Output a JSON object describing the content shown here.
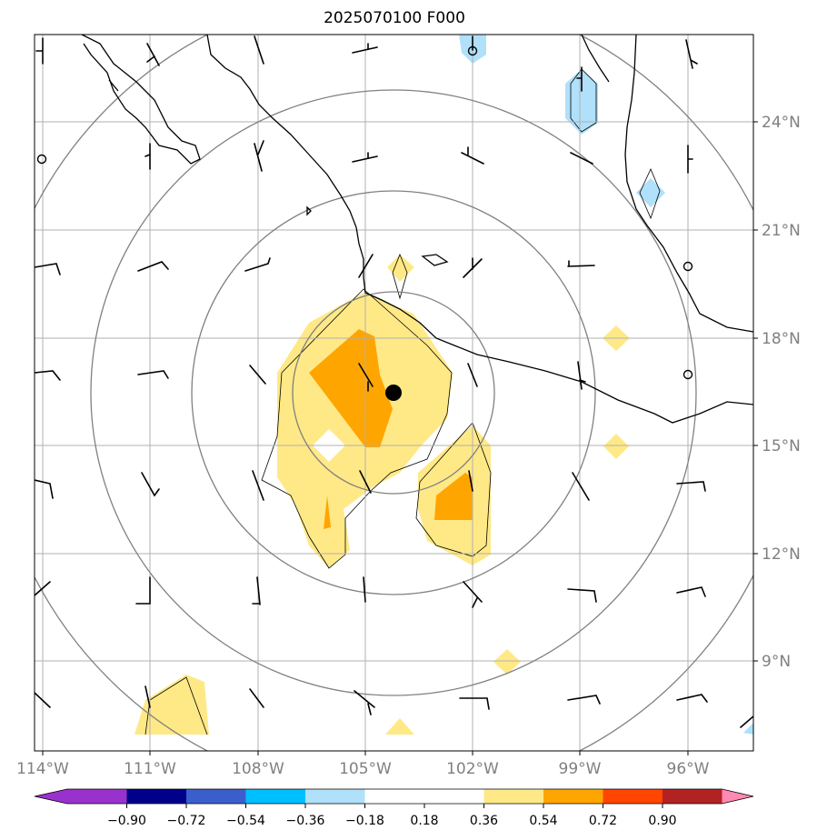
{
  "title": "2025070100 F000",
  "lat_labels": [
    "24°N",
    "21°N",
    "18°N",
    "15°N",
    "12°N",
    "9°N"
  ],
  "lon_labels": [
    "114°W",
    "111°W",
    "108°W",
    "105°W",
    "102°W",
    "99°W",
    "96°W"
  ],
  "colorbar": {
    "ticks": [
      "−0.90",
      "−0.72",
      "−0.54",
      "−0.36",
      "−0.18",
      "0.18",
      "0.36",
      "0.54",
      "0.72",
      "0.90"
    ],
    "colors": [
      "#9932cc",
      "#00008b",
      "#3a5fcd",
      "#00bfff",
      "#b0e0fa",
      "#ffffff",
      "#ffe987",
      "#ffa500",
      "#ff4500",
      "#b22222",
      "#ff89b3"
    ]
  },
  "colors": {
    "grid": "#b0b0b0",
    "range_rings": "#808080",
    "coast": "#000000",
    "center_marker": "#000000"
  },
  "storm_center": {
    "lat": "16.5°N",
    "lon": "104.2°W"
  }
}
